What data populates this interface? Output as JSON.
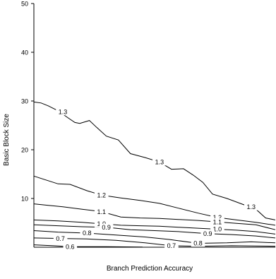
{
  "chart_data": {
    "type": "contour",
    "title": "",
    "xlabel": "Branch Prediction Accuracy",
    "ylabel": "Basic Block Size",
    "xlim": [
      0,
      1
    ],
    "ylim": [
      0,
      50
    ],
    "yticks": [
      10,
      20,
      30,
      40,
      50
    ],
    "xticks": [],
    "grid": false,
    "line_color": "#000000",
    "contours": [
      {
        "level": "1.3",
        "label_at": [
          [
            0.12,
            27.8
          ],
          [
            0.52,
            17.5
          ],
          [
            0.9,
            8.3
          ]
        ],
        "points": [
          [
            0,
            29.8
          ],
          [
            0.03,
            29.6
          ],
          [
            0.06,
            29.0
          ],
          [
            0.1,
            28.0
          ],
          [
            0.14,
            26.6
          ],
          [
            0.17,
            25.6
          ],
          [
            0.19,
            25.4
          ],
          [
            0.23,
            26.0
          ],
          [
            0.26,
            24.6
          ],
          [
            0.3,
            22.8
          ],
          [
            0.35,
            22.0
          ],
          [
            0.4,
            19.2
          ],
          [
            0.46,
            18.4
          ],
          [
            0.52,
            17.5
          ],
          [
            0.57,
            16.0
          ],
          [
            0.62,
            16.1
          ],
          [
            0.66,
            14.8
          ],
          [
            0.7,
            13.3
          ],
          [
            0.74,
            10.9
          ],
          [
            0.8,
            10.0
          ],
          [
            0.86,
            8.9
          ],
          [
            0.92,
            7.8
          ],
          [
            0.96,
            6.0
          ],
          [
            1.0,
            5.6
          ]
        ]
      },
      {
        "level": "1.2",
        "label_at": [
          [
            0.28,
            10.7
          ],
          [
            0.76,
            6.1
          ]
        ],
        "points": [
          [
            0,
            14.6
          ],
          [
            0.05,
            13.8
          ],
          [
            0.1,
            13.0
          ],
          [
            0.15,
            12.9
          ],
          [
            0.22,
            11.6
          ],
          [
            0.28,
            10.7
          ],
          [
            0.36,
            10.1
          ],
          [
            0.44,
            9.6
          ],
          [
            0.52,
            9.0
          ],
          [
            0.6,
            8.0
          ],
          [
            0.68,
            7.0
          ],
          [
            0.76,
            6.1
          ],
          [
            0.84,
            5.6
          ],
          [
            0.92,
            5.1
          ],
          [
            1.0,
            4.5
          ]
        ]
      },
      {
        "level": "1.1",
        "label_at": [
          [
            0.28,
            7.3
          ],
          [
            0.76,
            5.2
          ]
        ],
        "points": [
          [
            0,
            8.9
          ],
          [
            0.06,
            8.6
          ],
          [
            0.12,
            8.3
          ],
          [
            0.2,
            7.8
          ],
          [
            0.28,
            7.3
          ],
          [
            0.36,
            6.2
          ],
          [
            0.44,
            6.0
          ],
          [
            0.52,
            5.9
          ],
          [
            0.6,
            5.7
          ],
          [
            0.68,
            5.5
          ],
          [
            0.76,
            5.2
          ],
          [
            0.84,
            4.9
          ],
          [
            0.92,
            4.6
          ],
          [
            1.0,
            3.6
          ]
        ]
      },
      {
        "level": "1.0",
        "label_at": [
          [
            0.28,
            4.8
          ],
          [
            0.76,
            3.7
          ]
        ],
        "points": [
          [
            0,
            5.6
          ],
          [
            0.1,
            5.4
          ],
          [
            0.2,
            5.1
          ],
          [
            0.28,
            4.8
          ],
          [
            0.36,
            4.5
          ],
          [
            0.44,
            4.4
          ],
          [
            0.52,
            4.3
          ],
          [
            0.6,
            4.1
          ],
          [
            0.68,
            3.9
          ],
          [
            0.76,
            3.7
          ],
          [
            0.84,
            3.5
          ],
          [
            0.92,
            3.2
          ],
          [
            1.0,
            2.7
          ]
        ]
      },
      {
        "level": "0.9",
        "label_at": [
          [
            0.3,
            4.1
          ],
          [
            0.72,
            2.8
          ]
        ],
        "points": [
          [
            0,
            4.6
          ],
          [
            0.1,
            4.4
          ],
          [
            0.2,
            4.2
          ],
          [
            0.3,
            4.1
          ],
          [
            0.4,
            3.6
          ],
          [
            0.5,
            3.4
          ],
          [
            0.6,
            3.2
          ],
          [
            0.72,
            2.8
          ],
          [
            0.82,
            2.6
          ],
          [
            0.92,
            2.3
          ],
          [
            1.0,
            1.9
          ]
        ]
      },
      {
        "level": "0.8",
        "label_at": [
          [
            0.22,
            2.9
          ],
          [
            0.68,
            0.8
          ]
        ],
        "points": [
          [
            0,
            3.4
          ],
          [
            0.1,
            3.1
          ],
          [
            0.22,
            2.9
          ],
          [
            0.34,
            2.5
          ],
          [
            0.46,
            2.1
          ],
          [
            0.56,
            1.6
          ],
          [
            0.68,
            0.8
          ],
          [
            0.8,
            0.9
          ],
          [
            0.9,
            1.1
          ],
          [
            1.0,
            0.9
          ]
        ]
      },
      {
        "level": "0.7",
        "label_at": [
          [
            0.11,
            1.8
          ],
          [
            0.57,
            0.3
          ]
        ],
        "points": [
          [
            0,
            1.9
          ],
          [
            0.11,
            1.8
          ],
          [
            0.22,
            1.7
          ],
          [
            0.34,
            1.4
          ],
          [
            0.46,
            0.9
          ],
          [
            0.57,
            0.3
          ],
          [
            0.68,
            0.2
          ],
          [
            0.82,
            0.3
          ],
          [
            1.0,
            0.2
          ]
        ]
      },
      {
        "level": "0.6",
        "label_at": [
          [
            0.15,
            0.1
          ]
        ],
        "points": [
          [
            0,
            0.5
          ],
          [
            0.08,
            0.3
          ],
          [
            0.15,
            0.1
          ],
          [
            0.3,
            0.1
          ],
          [
            0.45,
            0.05
          ]
        ]
      }
    ]
  }
}
